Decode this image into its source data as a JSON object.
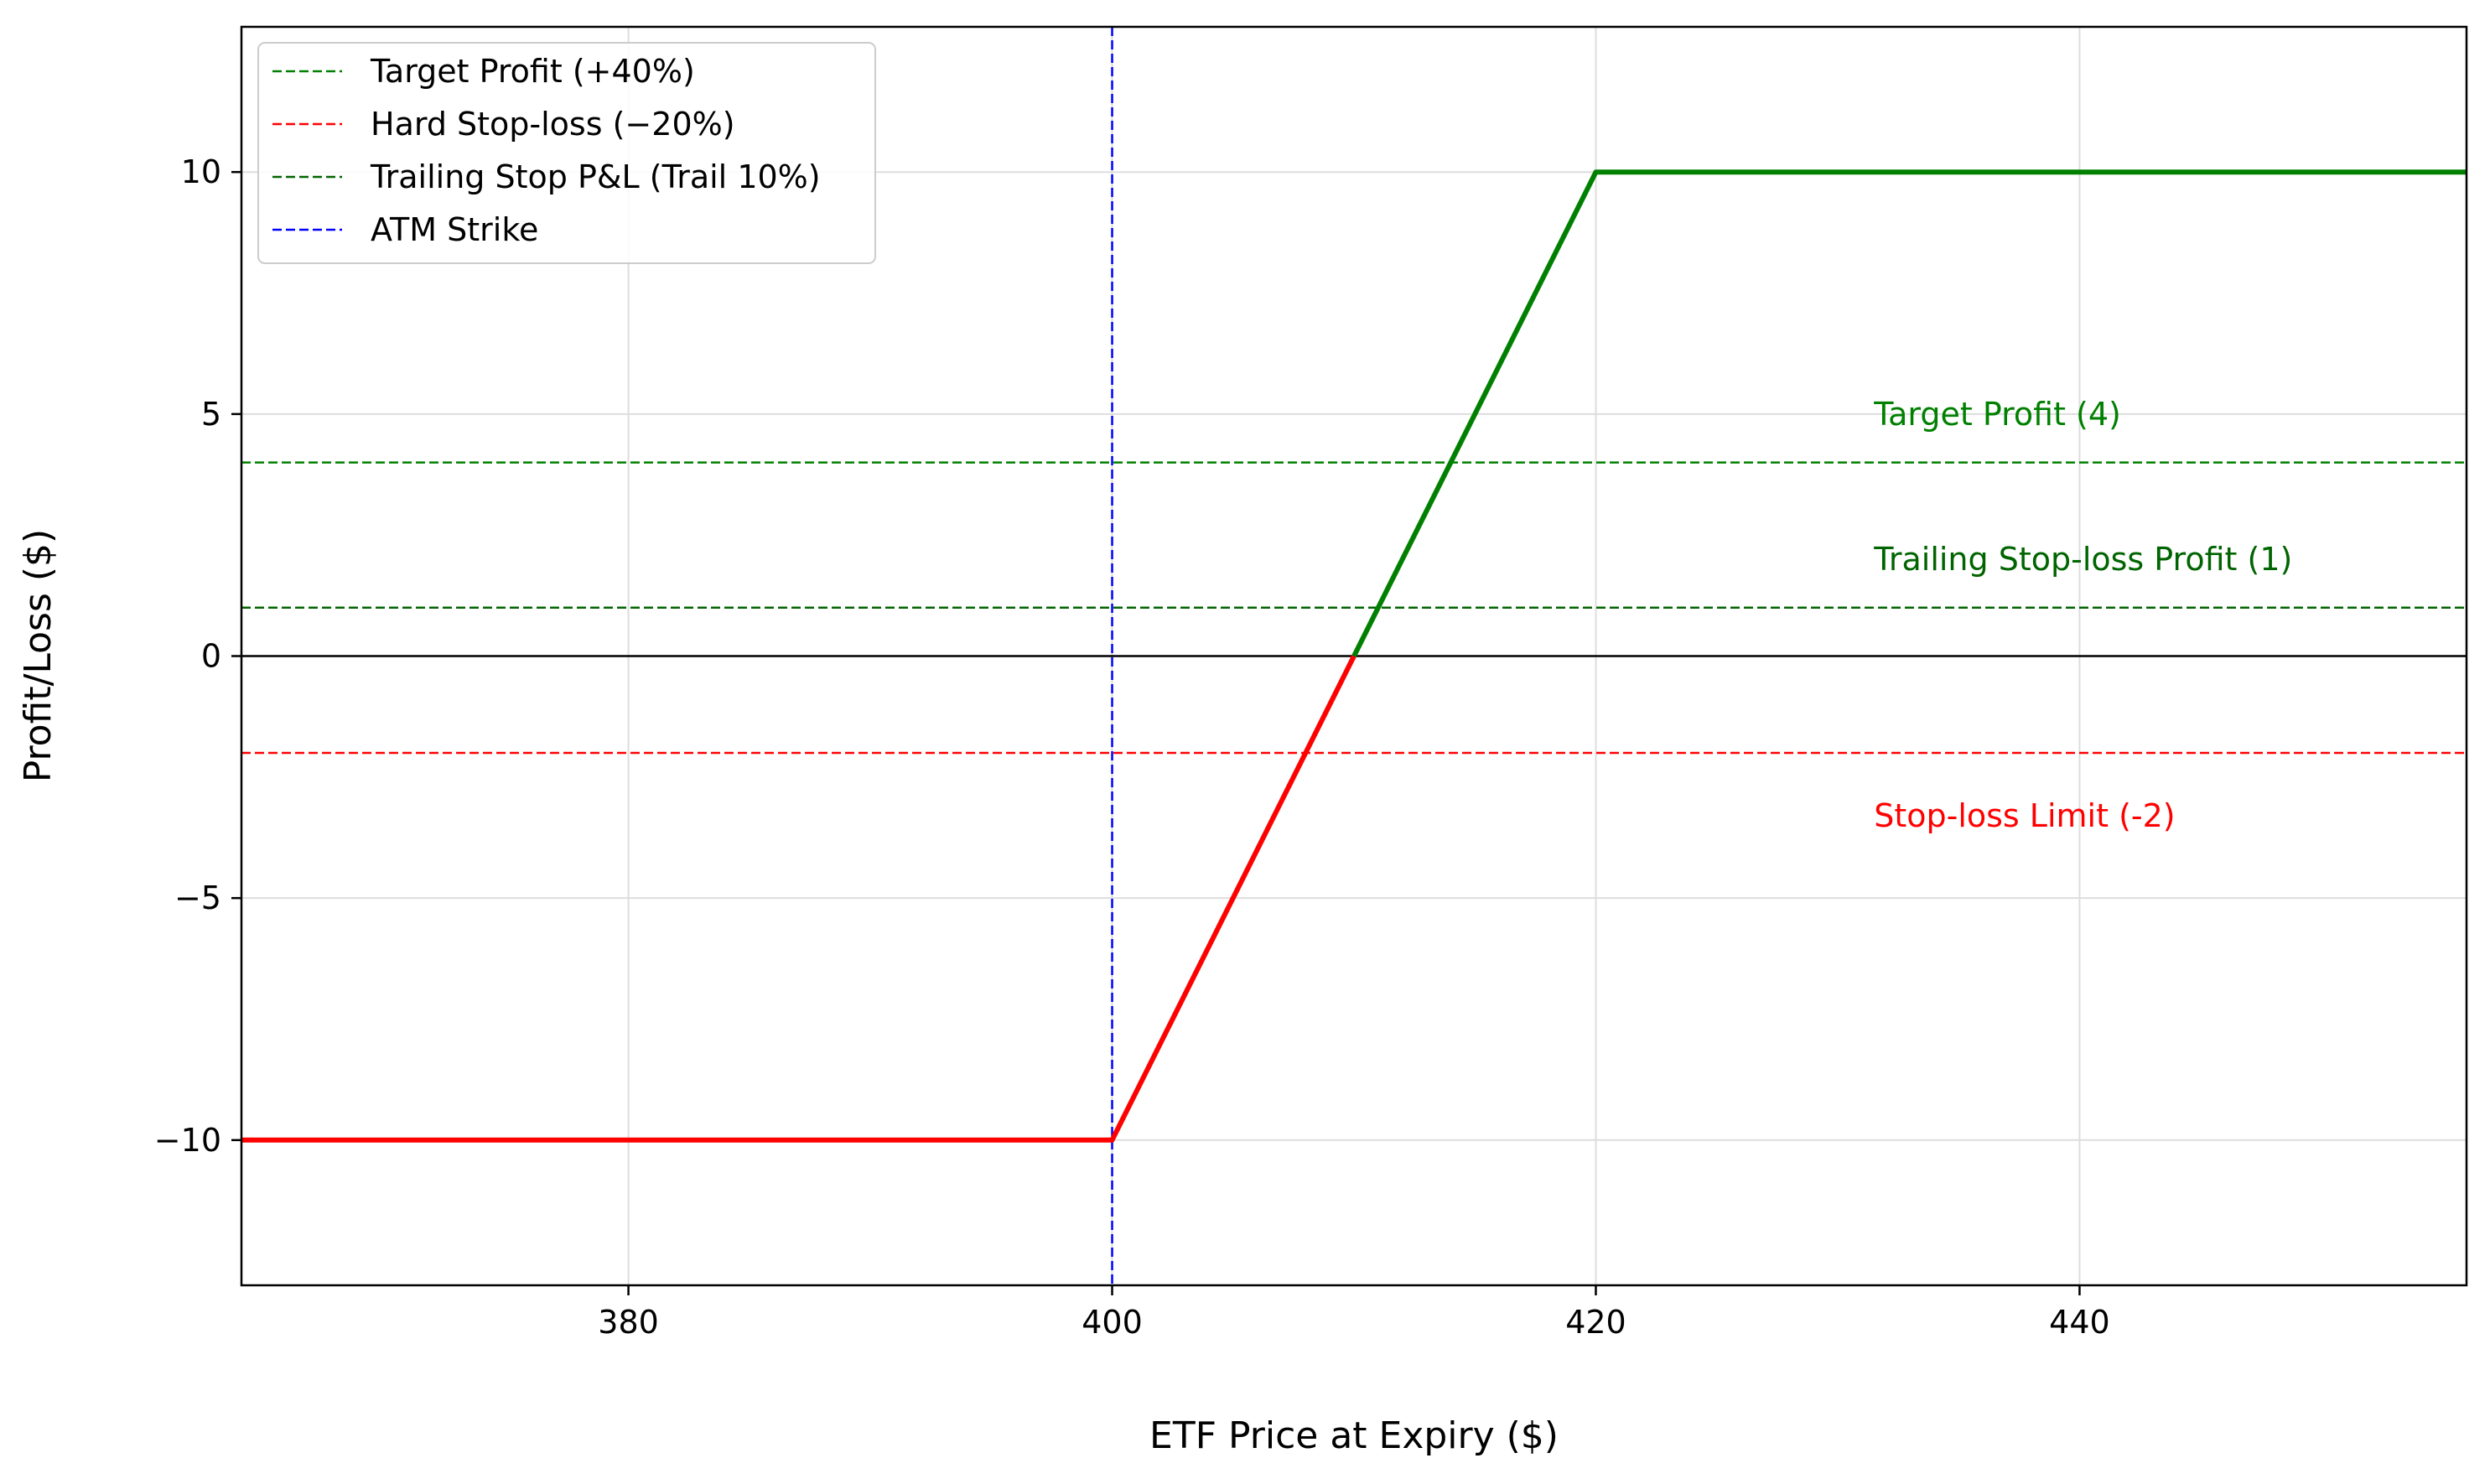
{
  "chart_data": {
    "type": "line",
    "title": "",
    "xlabel": "ETF Price at Expiry ($)",
    "ylabel": "Profit/Loss ($)",
    "xlim": [
      364,
      456
    ],
    "ylim": [
      -13,
      13
    ],
    "xticks": [
      380,
      400,
      420,
      440
    ],
    "xtick_labels": [
      "380",
      "400",
      "420",
      "440"
    ],
    "yticks": [
      -10,
      -5,
      0,
      5,
      10
    ],
    "ytick_labels": [
      "−10",
      "−5",
      "0",
      "5",
      "10"
    ],
    "grid": true,
    "legend_position": "upper-left",
    "payoff": {
      "loss_segment": {
        "color": "#ff0000",
        "x": [
          364,
          400,
          410
        ],
        "y": [
          -10,
          -10,
          0
        ]
      },
      "profit_segment": {
        "color": "#008000",
        "x": [
          410,
          420,
          456
        ],
        "y": [
          0,
          10,
          10
        ]
      }
    },
    "zero_line": {
      "y": 0,
      "color": "#000000"
    },
    "hlines": [
      {
        "legend": "Target Profit (+40%)",
        "y": 4,
        "color": "#008000"
      },
      {
        "legend": "Hard Stop-loss (−20%)",
        "y": -2,
        "color": "#ff0000"
      },
      {
        "legend": "Trailing Stop P&L (Trail 10%)",
        "y": 1,
        "color": "#006400"
      }
    ],
    "vlines": [
      {
        "legend": "ATM Strike",
        "x": 400,
        "color": "#0000ff"
      }
    ],
    "annotations": [
      {
        "text": "Target Profit (4)",
        "x": 431.5,
        "y": 5.0,
        "color": "#008000"
      },
      {
        "text": "Trailing Stop-loss Profit (1)",
        "x": 431.5,
        "y": 2.0,
        "color": "#006400"
      },
      {
        "text": "Stop-loss Limit (-2)",
        "x": 431.5,
        "y": -3.3,
        "color": "#ff0000"
      }
    ]
  }
}
